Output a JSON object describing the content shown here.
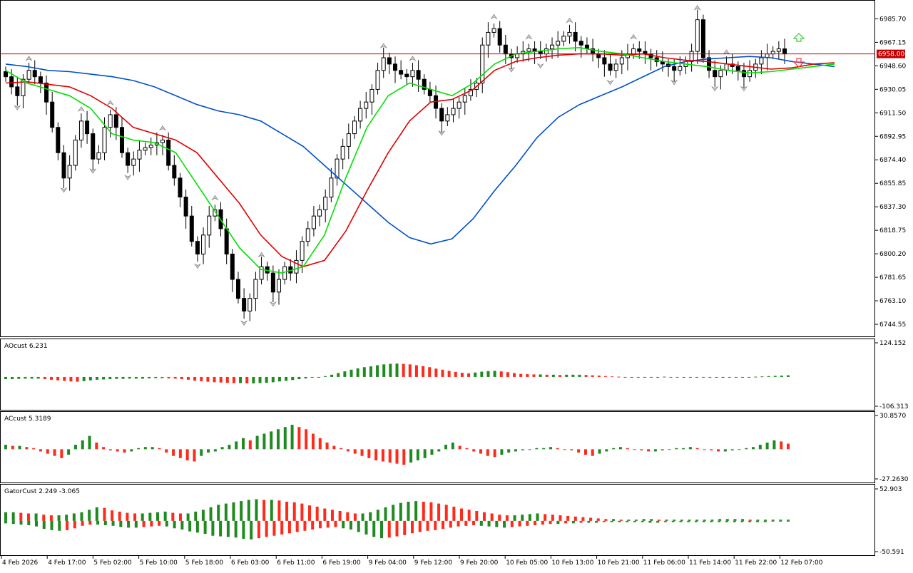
{
  "panels": {
    "main": {
      "price_ticks": [
        "6985.70",
        "6967.15",
        "6948.60",
        "6930.05",
        "6911.50",
        "6892.95",
        "6874.40",
        "6855.85",
        "6837.30",
        "6818.75",
        "6800.20",
        "6781.65",
        "6763.10",
        "6744.55"
      ],
      "current_price": "6958.00"
    },
    "ao": {
      "label": "AOcust 6.231",
      "ticks": [
        "124.152",
        "-106.313"
      ]
    },
    "ac": {
      "label": "ACcust 5.3189",
      "ticks": [
        "30.8570",
        "-27.2630"
      ]
    },
    "gator": {
      "label": "GatorCust 2.249 -3.065",
      "ticks": [
        "52.903",
        "-50.591"
      ]
    }
  },
  "time_labels": [
    "4 Feb 2026",
    "4 Feb 17:00",
    "5 Feb 02:00",
    "5 Feb 10:00",
    "5 Feb 18:00",
    "6 Feb 03:00",
    "6 Feb 11:00",
    "6 Feb 19:00",
    "9 Feb 04:00",
    "9 Feb 12:00",
    "9 Feb 20:00",
    "10 Feb 05:00",
    "10 Feb 13:00",
    "10 Feb 21:00",
    "11 Feb 06:00",
    "11 Feb 14:00",
    "11 Feb 22:00",
    "12 Feb 07:00"
  ],
  "colors": {
    "up_color": "#1f8a1f",
    "down_color": "#ff2a1a",
    "alligator_jaw": "#0050c8",
    "alligator_teeth": "#e00000",
    "alligator_lips": "#00e000",
    "price_line": "#c40000"
  },
  "chart_data": {
    "type": "candlestick",
    "symbol_price_range": [
      6735.0,
      7000.0
    ],
    "closes": [
      6940,
      6932,
      6925,
      6938,
      6945,
      6940,
      6935,
      6920,
      6900,
      6880,
      6860,
      6870,
      6890,
      6905,
      6895,
      6875,
      6880,
      6900,
      6910,
      6900,
      6880,
      6870,
      6875,
      6882,
      6884,
      6886,
      6888,
      6890,
      6870,
      6860,
      6845,
      6830,
      6810,
      6800,
      6815,
      6830,
      6835,
      6820,
      6800,
      6780,
      6765,
      6755,
      6765,
      6780,
      6790,
      6785,
      6770,
      6780,
      6790,
      6785,
      6795,
      6810,
      6820,
      6830,
      6835,
      6845,
      6860,
      6875,
      6885,
      6895,
      6905,
      6915,
      6920,
      6930,
      6945,
      6955,
      6950,
      6945,
      6942,
      6940,
      6945,
      6938,
      6930,
      6925,
      6915,
      6905,
      6910,
      6915,
      6920,
      6925,
      6930,
      6935,
      6965,
      6975,
      6978,
      6965,
      6958,
      6955,
      6958,
      6960,
      6962,
      6960,
      6958,
      6962,
      6965,
      6968,
      6972,
      6975,
      6968,
      6965,
      6962,
      6958,
      6955,
      6950,
      6945,
      6950,
      6955,
      6958,
      6962,
      6960,
      6958,
      6955,
      6952,
      6950,
      6948,
      6945,
      6948,
      6952,
      6960,
      6985,
      6955,
      6945,
      6940,
      6945,
      6950,
      6948,
      6945,
      6940,
      6945,
      6950,
      6955,
      6958,
      6960,
      6962,
      6958
    ],
    "alligator": {
      "jaw": [
        6950,
        6948,
        6945,
        6944,
        6942,
        6940,
        6937,
        6932,
        6925,
        6918,
        6913,
        6910,
        6905,
        6895,
        6885,
        6870,
        6855,
        6840,
        6825,
        6813,
        6808,
        6812,
        6828,
        6850,
        6870,
        6892,
        6908,
        6918,
        6925,
        6932,
        6940,
        6948,
        6952,
        6954,
        6955,
        6956,
        6955,
        6952,
        6950,
        6948
      ],
      "teeth": [
        6935,
        6936,
        6934,
        6932,
        6925,
        6915,
        6900,
        6895,
        6890,
        6880,
        6860,
        6840,
        6815,
        6798,
        6790,
        6795,
        6818,
        6850,
        6880,
        6905,
        6920,
        6922,
        6930,
        6945,
        6952,
        6955,
        6957,
        6958,
        6958,
        6957,
        6958,
        6955,
        6953,
        6952,
        6950,
        6948,
        6946,
        6947,
        6950,
        6951
      ],
      "lips": [
        6945,
        6935,
        6930,
        6925,
        6915,
        6895,
        6890,
        6888,
        6880,
        6855,
        6830,
        6805,
        6788,
        6785,
        6790,
        6815,
        6860,
        6900,
        6925,
        6935,
        6930,
        6925,
        6935,
        6950,
        6958,
        6960,
        6962,
        6963,
        6960,
        6958,
        6955,
        6952,
        6950,
        6948,
        6945,
        6943,
        6944,
        6946,
        6948,
        6950
      ]
    },
    "ao": [
      -8,
      -8,
      -7,
      -6,
      -6,
      -6,
      -8,
      -10,
      -12,
      -14,
      -16,
      -17,
      -15,
      -12,
      -10,
      -9,
      -8,
      -7,
      -7,
      -6,
      -6,
      -6,
      -5,
      -4,
      -4,
      -5,
      -6,
      -8,
      -10,
      -13,
      -15,
      -17,
      -19,
      -20,
      -21,
      -22,
      -22,
      -23,
      -23,
      -22,
      -21,
      -19,
      -16,
      -14,
      -11,
      -8,
      -5,
      -2,
      0,
      3,
      8,
      14,
      20,
      26,
      31,
      35,
      38,
      42,
      45,
      47,
      48,
      47,
      45,
      42,
      39,
      35,
      30,
      26,
      22,
      18,
      15,
      13,
      16,
      19,
      21,
      22,
      20,
      17,
      14,
      11,
      10,
      9,
      9,
      8,
      8,
      7,
      8,
      8,
      8,
      7,
      6,
      5,
      3,
      2,
      1,
      0,
      0,
      -1,
      -1,
      0,
      0,
      1,
      -1,
      -2,
      -2,
      -2,
      -1,
      -2,
      -2,
      -3,
      -3,
      -2,
      -2,
      -1,
      0,
      1,
      2,
      3,
      4,
      5,
      6
    ],
    "ac": [
      4,
      3,
      3,
      2,
      1,
      -2,
      -4,
      -6,
      -8,
      -5,
      4,
      8,
      12,
      6,
      2,
      -1,
      -2,
      -3,
      -2,
      1,
      2,
      2,
      1,
      -3,
      -6,
      -8,
      -10,
      -11,
      -6,
      -3,
      -2,
      2,
      4,
      7,
      10,
      8,
      12,
      14,
      16,
      18,
      20,
      22,
      20,
      18,
      14,
      10,
      6,
      3,
      1,
      -2,
      -4,
      -6,
      -8,
      -10,
      -11,
      -12,
      -13,
      -14,
      -12,
      -10,
      -8,
      -5,
      -2,
      4,
      6,
      3,
      1,
      -2,
      -4,
      -6,
      -7,
      -5,
      -3,
      -2,
      -1,
      0,
      1,
      1,
      2,
      1,
      0,
      -1,
      -3,
      -5,
      -6,
      -4,
      -2,
      1,
      2,
      1,
      0,
      -1,
      -2,
      -2,
      -1,
      0,
      1,
      1,
      2,
      1,
      0,
      -1,
      -2,
      -2,
      -1,
      0,
      1,
      2,
      4,
      6,
      8,
      7,
      5
    ],
    "gator_up": [
      14,
      14,
      13,
      12,
      12,
      10,
      9,
      9,
      10,
      12,
      14,
      18,
      22,
      21,
      17,
      15,
      13,
      12,
      12,
      13,
      14,
      15,
      13,
      12,
      12,
      15,
      18,
      22,
      26,
      28,
      30,
      32,
      34,
      35,
      34,
      34,
      33,
      31,
      30,
      28,
      25,
      23,
      20,
      18,
      16,
      14,
      12,
      12,
      14,
      18,
      22,
      26,
      29,
      31,
      32,
      31,
      30,
      28,
      26,
      23,
      20,
      18,
      16,
      14,
      12,
      10,
      9,
      9,
      10,
      11,
      12,
      11,
      10,
      9,
      8,
      7,
      6,
      5,
      4,
      3,
      3,
      2,
      2,
      2,
      3,
      3,
      2,
      2,
      2,
      2,
      2,
      2,
      2,
      2,
      3,
      3,
      3,
      3,
      2,
      2,
      2,
      2,
      2,
      2
    ],
    "gator_down": [
      -4,
      -5,
      -6,
      -7,
      -9,
      -13,
      -15,
      -16,
      -15,
      -12,
      -8,
      -6,
      -6,
      -7,
      -8,
      -10,
      -11,
      -11,
      -10,
      -9,
      -8,
      -9,
      -12,
      -14,
      -17,
      -19,
      -21,
      -24,
      -25,
      -26,
      -27,
      -29,
      -30,
      -28,
      -26,
      -24,
      -22,
      -20,
      -18,
      -16,
      -14,
      -12,
      -11,
      -10,
      -12,
      -14,
      -18,
      -22,
      -26,
      -28,
      -27,
      -25,
      -23,
      -20,
      -18,
      -16,
      -15,
      -13,
      -11,
      -9,
      -8,
      -7,
      -8,
      -9,
      -10,
      -11,
      -10,
      -9,
      -8,
      -7,
      -6,
      -5,
      -5,
      -4,
      -4,
      -3,
      -3,
      -3,
      -2,
      -2,
      -2,
      -2,
      -2,
      -2,
      -3,
      -3,
      -2,
      -2,
      -2,
      -2,
      -2,
      -2,
      -2,
      -2,
      -2,
      -2,
      -2,
      -2,
      -2,
      -2,
      -1,
      -1,
      -1
    ]
  }
}
